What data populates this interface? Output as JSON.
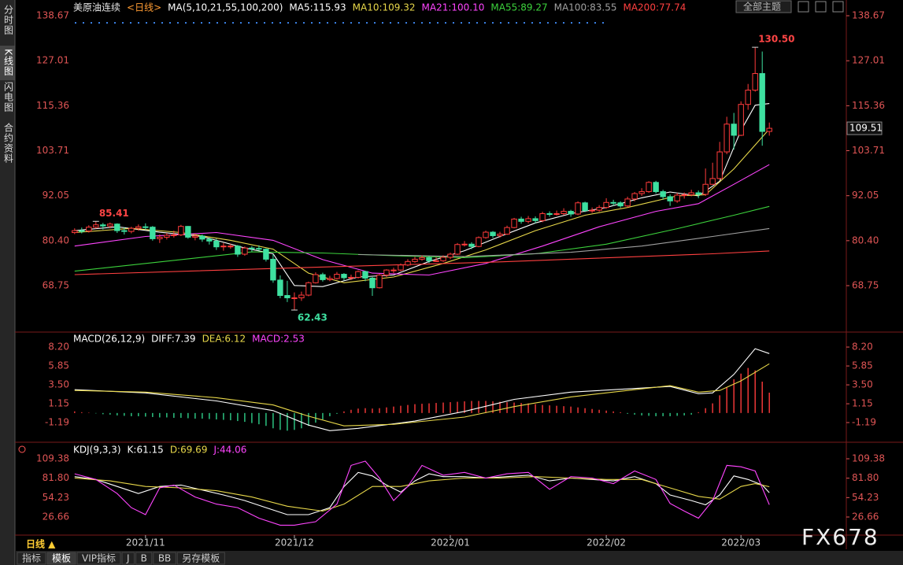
{
  "ui": {
    "sidebar": [
      "分时图",
      "K线图",
      "闪电图",
      "合约资料"
    ],
    "theme_button": "全部主题",
    "period_tab": "日线 ▲",
    "tabs": [
      "指标",
      "模板",
      "VIP指标",
      "J",
      "B",
      "BB",
      "另存模板"
    ],
    "watermark": "FX678"
  },
  "chart_data": [
    {
      "type": "candlestick",
      "title": "美原油连续",
      "period": "<日线>",
      "indicator": "MA(5,10,21,55,100,200)",
      "up_color": "#ff3b3b",
      "down_color": "#3ee0a0",
      "axis_color": "#e05555",
      "xlim": [
        -0.2,
        98.2
      ],
      "ylim": [
        57.13,
        140.71
      ],
      "yticks": [
        138.67,
        127.01,
        115.36,
        103.71,
        92.05,
        {
          "value": 80.4,
          "label": "80.40"
        },
        68.75
      ],
      "last_price_label": "109.51",
      "open": [
        82.5,
        83.0,
        82.9,
        83.9,
        84.5,
        84.2,
        84.7,
        83.0,
        82.8,
        83.6,
        84.0,
        83.9,
        80.9,
        81.3,
        81.8,
        81.9,
        84.1,
        81.3,
        81.6,
        80.8,
        80.3,
        78.8,
        79.0,
        79.0,
        76.9,
        78.5,
        78.4,
        78.2,
        75.6,
        70.2,
        66.2,
        65.6,
        65.6,
        66.3,
        69.5,
        71.6,
        70.3,
        70.6,
        71.7,
        70.8,
        70.9,
        72.4,
        70.7,
        68.2,
        71.5,
        72.8,
        72.8,
        74.1,
        75.0,
        75.6,
        76.0,
        75.2,
        75.2,
        76.1,
        76.9,
        79.4,
        79.5,
        78.9,
        81.2,
        82.6,
        81.7,
        82.1,
        83.8,
        86.0,
        85.4,
        86.1,
        85.6,
        87.4,
        87.2,
        87.4,
        88.0,
        87.3,
        90.2,
        88.2,
        88.3,
        89.0,
        90.3,
        90.2,
        89.4,
        91.2,
        92.6,
        93.1,
        95.5,
        93.1,
        91.8,
        90.7,
        92.2,
        92.3,
        92.8,
        92.4,
        95.0,
        96.5,
        103.4,
        110.6,
        107.7,
        115.7,
        119.4,
        123.7,
        108.7
      ],
      "high": [
        83.6,
        83.8,
        84.4,
        85.41,
        85.0,
        85.1,
        84.9,
        83.9,
        84.0,
        84.6,
        84.9,
        84.2,
        82.0,
        82.4,
        83.0,
        84.5,
        84.2,
        82.2,
        82.0,
        81.2,
        80.9,
        79.8,
        79.6,
        79.3,
        78.9,
        79.0,
        79.2,
        78.4,
        76.9,
        71.4,
        70.0,
        67.0,
        67.2,
        69.8,
        72.2,
        72.1,
        71.3,
        72.3,
        72.0,
        71.6,
        72.7,
        72.6,
        71.0,
        71.8,
        73.0,
        73.4,
        74.5,
        75.6,
        76.2,
        76.6,
        76.4,
        76.1,
        76.6,
        77.3,
        79.8,
        80.3,
        80.0,
        81.5,
        83.0,
        82.9,
        82.7,
        84.3,
        86.3,
        86.6,
        86.8,
        86.7,
        87.9,
        88.0,
        88.2,
        88.8,
        88.4,
        90.6,
        90.5,
        89.0,
        89.6,
        91.4,
        91.0,
        90.6,
        91.8,
        93.0,
        94.0,
        95.8,
        95.9,
        93.6,
        92.4,
        92.8,
        92.9,
        93.6,
        93.4,
        99.1,
        100.6,
        106.0,
        112.5,
        113.5,
        116.5,
        121.0,
        130.5,
        129.4,
        111.0
      ],
      "low": [
        82.1,
        82.3,
        82.5,
        83.5,
        83.3,
        83.6,
        82.4,
        82.0,
        82.3,
        83.0,
        83.2,
        80.4,
        79.8,
        80.7,
        81.2,
        81.6,
        80.9,
        80.5,
        80.1,
        79.4,
        78.0,
        77.8,
        78.3,
        76.2,
        76.5,
        77.6,
        77.8,
        75.0,
        69.5,
        65.5,
        64.5,
        62.43,
        64.8,
        66.0,
        69.3,
        69.8,
        69.9,
        70.3,
        70.1,
        70.2,
        70.6,
        69.9,
        66.1,
        68.0,
        71.0,
        72.0,
        72.5,
        73.8,
        74.7,
        75.2,
        74.6,
        74.9,
        74.9,
        75.6,
        76.7,
        78.9,
        78.2,
        78.7,
        80.9,
        81.1,
        81.2,
        81.9,
        83.6,
        84.8,
        84.9,
        84.9,
        85.2,
        86.6,
        86.9,
        87.0,
        86.6,
        87.0,
        87.8,
        87.6,
        87.9,
        88.7,
        89.4,
        88.9,
        89.0,
        90.6,
        92.0,
        92.8,
        92.6,
        91.0,
        89.4,
        90.2,
        91.3,
        91.9,
        91.4,
        92.0,
        94.9,
        96.3,
        102.8,
        104.0,
        107.5,
        114.3,
        119.0,
        105.0,
        107.6
      ],
      "close": [
        83.0,
        82.9,
        83.9,
        84.5,
        84.2,
        84.7,
        83.0,
        82.8,
        83.6,
        84.0,
        83.9,
        80.9,
        81.3,
        81.8,
        81.9,
        84.1,
        81.3,
        81.6,
        80.8,
        80.3,
        78.8,
        79.0,
        79.0,
        76.9,
        78.5,
        78.4,
        78.2,
        75.6,
        70.2,
        66.2,
        65.6,
        65.6,
        66.3,
        69.5,
        71.6,
        70.3,
        70.6,
        71.7,
        70.8,
        70.9,
        72.4,
        70.7,
        68.2,
        71.5,
        72.8,
        72.8,
        74.1,
        75.0,
        75.6,
        76.0,
        75.2,
        75.2,
        76.1,
        76.9,
        79.4,
        79.5,
        78.9,
        81.2,
        82.6,
        81.7,
        82.1,
        83.8,
        86.0,
        85.4,
        86.1,
        85.6,
        87.4,
        87.2,
        87.4,
        88.0,
        87.3,
        90.2,
        88.2,
        88.3,
        89.0,
        90.3,
        90.2,
        89.4,
        91.2,
        92.6,
        93.1,
        95.5,
        93.1,
        91.8,
        90.7,
        92.2,
        92.3,
        92.8,
        92.4,
        95.0,
        96.5,
        103.4,
        110.6,
        107.7,
        115.7,
        119.4,
        123.7,
        108.7,
        109.51
      ],
      "annotations": [
        {
          "text": "130.50",
          "value": 130.5,
          "color": "#ff4545"
        },
        {
          "text": "85.41",
          "value": 85.41,
          "color": "#ff4545"
        },
        {
          "text": "62.43",
          "value": 62.43,
          "color": "#3ee0a0"
        }
      ],
      "series": [
        {
          "name": "MA5:115.93",
          "color": "#ffffff",
          "x": [
            0,
            6,
            12,
            18,
            24,
            28,
            31,
            35,
            40,
            45,
            50,
            55,
            60,
            65,
            70,
            75,
            80,
            84,
            88,
            91,
            94,
            96,
            98
          ],
          "values": [
            83.0,
            84.0,
            82.6,
            81.5,
            78.5,
            77.0,
            68.8,
            68.5,
            71.0,
            71.5,
            75.0,
            77.8,
            81.5,
            85.0,
            87.4,
            89.0,
            91.5,
            93.0,
            92.0,
            95.8,
            109.0,
            115.5,
            115.93
          ]
        },
        {
          "name": "MA10:109.32",
          "color": "#e8d84a",
          "x": [
            0,
            8,
            15,
            22,
            28,
            33,
            38,
            45,
            52,
            58,
            65,
            72,
            78,
            85,
            89,
            93,
            98
          ],
          "values": [
            82.5,
            83.6,
            82.5,
            80.5,
            78.2,
            72.0,
            69.5,
            71.0,
            74.5,
            78.0,
            83.0,
            87.0,
            89.0,
            92.0,
            92.3,
            99.0,
            109.32
          ]
        },
        {
          "name": "MA21:100.10",
          "color": "#ff45ff",
          "x": [
            0,
            10,
            20,
            28,
            35,
            42,
            50,
            58,
            66,
            74,
            82,
            88,
            93,
            98
          ],
          "values": [
            79.0,
            81.5,
            82.5,
            80.5,
            75.5,
            72.0,
            71.5,
            74.5,
            79.0,
            84.0,
            88.0,
            90.0,
            95.0,
            100.1
          ]
        },
        {
          "name": "MA55:89.27",
          "color": "#3cd23c",
          "x": [
            0,
            15,
            25,
            35,
            45,
            55,
            65,
            75,
            85,
            93,
            98
          ],
          "values": [
            72.5,
            75.5,
            77.5,
            77.2,
            76.5,
            76.0,
            77.0,
            79.5,
            83.5,
            87.0,
            89.27
          ]
        },
        {
          "name": "MA100:83.55",
          "color": "#a0a0a0",
          "x": [
            40,
            55,
            70,
            80,
            90,
            98
          ],
          "values": [
            76.8,
            76.3,
            77.4,
            79.0,
            81.5,
            83.55
          ]
        },
        {
          "name": "MA200:77.74",
          "color": "#ff4040",
          "x": [
            0,
            30,
            60,
            90,
            98
          ],
          "values": [
            71.6,
            73.3,
            74.9,
            77.0,
            77.74
          ]
        }
      ]
    },
    {
      "type": "macd",
      "indicator": "MACD(26,12,9)",
      "axis_color": "#e05555",
      "xlim": [
        -0.2,
        98.2
      ],
      "ylim": [
        -3.44,
        9.77
      ],
      "yticks": [
        {
          "value": 8.2,
          "label": "8.20"
        },
        5.85,
        {
          "value": 3.5,
          "label": "3.50"
        },
        1.15,
        -1.19
      ],
      "series": [
        {
          "name": "DIFF:7.39",
          "color": "#ffffff",
          "x": [
            0,
            10,
            20,
            28,
            33,
            36,
            40,
            48,
            55,
            62,
            70,
            78,
            84,
            88,
            90,
            93,
            96,
            98
          ],
          "values": [
            2.9,
            2.5,
            1.5,
            0.3,
            -1.5,
            -2.2,
            -1.9,
            -1.0,
            0.2,
            1.7,
            2.6,
            3.0,
            3.3,
            2.4,
            2.5,
            4.8,
            8.0,
            7.39
          ]
        },
        {
          "name": "DEA:6.12",
          "color": "#e8d84a",
          "x": [
            0,
            10,
            20,
            28,
            33,
            38,
            45,
            55,
            62,
            70,
            78,
            84,
            88,
            91,
            94,
            98
          ],
          "values": [
            2.8,
            2.6,
            1.9,
            1.0,
            -0.4,
            -1.6,
            -1.4,
            -0.5,
            0.8,
            2.0,
            2.8,
            3.4,
            2.6,
            2.8,
            4.0,
            6.12
          ]
        }
      ],
      "histogram": {
        "name": "MACD:2.53",
        "color": "#ff45ff",
        "up_color": "#ff3b3b",
        "down_color": "#2fd08a",
        "values": [
          0.2,
          0.1,
          0.05,
          -0.05,
          -0.15,
          -0.2,
          -0.3,
          -0.35,
          -0.4,
          -0.4,
          -0.45,
          -0.5,
          -0.55,
          -0.55,
          -0.6,
          -0.6,
          -0.65,
          -0.7,
          -0.7,
          -0.75,
          -0.8,
          -0.85,
          -0.9,
          -1.0,
          -1.1,
          -1.25,
          -1.4,
          -1.6,
          -1.9,
          -2.1,
          -2.2,
          -2.1,
          -1.9,
          -1.6,
          -1.2,
          -0.8,
          -0.4,
          -0.1,
          0.2,
          0.4,
          0.55,
          0.6,
          0.55,
          0.6,
          0.7,
          0.8,
          0.9,
          1.0,
          1.1,
          1.15,
          1.2,
          1.25,
          1.3,
          1.35,
          1.4,
          1.45,
          1.5,
          1.5,
          1.5,
          1.45,
          1.4,
          1.35,
          1.3,
          1.25,
          1.2,
          1.1,
          1.0,
          0.95,
          0.9,
          0.85,
          0.8,
          0.7,
          0.6,
          0.5,
          0.4,
          0.3,
          0.2,
          0.1,
          -0.1,
          -0.2,
          -0.3,
          -0.35,
          -0.4,
          -0.4,
          -0.4,
          -0.35,
          -0.3,
          -0.2,
          0.1,
          0.6,
          1.2,
          2.2,
          3.2,
          4.2,
          4.9,
          5.6,
          5.3,
          3.9,
          2.53
        ]
      }
    },
    {
      "type": "kdj",
      "indicator": "KDJ(9,3,3)",
      "axis_color": "#e05555",
      "xlim": [
        -0.2,
        98.2
      ],
      "ylim": [
        0.95,
        129.5
      ],
      "yticks": [
        109.38,
        {
          "value": 81.8,
          "label": "81.80"
        },
        54.23,
        26.66
      ],
      "xticks": [
        {
          "value": 10,
          "label": "2021/11"
        },
        {
          "value": 31,
          "label": "2021/12"
        },
        {
          "value": 53,
          "label": "2022/01"
        },
        {
          "value": 75,
          "label": "2022/02"
        },
        {
          "value": 94,
          "label": "2022/03"
        }
      ],
      "series": [
        {
          "name": "K:61.15",
          "color": "#ffffff",
          "x": [
            0,
            3,
            6,
            9,
            12,
            15,
            18,
            21,
            24,
            27,
            30,
            33,
            36,
            38,
            40,
            42,
            44,
            46,
            48,
            50,
            52,
            55,
            58,
            61,
            64,
            67,
            70,
            73,
            76,
            79,
            82,
            84,
            87,
            89,
            91,
            93,
            95,
            97,
            98
          ],
          "values": [
            84,
            80,
            70,
            60,
            70,
            72,
            65,
            58,
            50,
            40,
            30,
            30,
            40,
            70,
            90,
            85,
            72,
            62,
            78,
            88,
            84,
            84,
            82,
            84,
            86,
            78,
            82,
            80,
            78,
            84,
            74,
            58,
            50,
            44,
            58,
            85,
            80,
            72,
            61.15
          ]
        },
        {
          "name": "D:69.69",
          "color": "#e8d84a",
          "x": [
            0,
            5,
            10,
            15,
            20,
            25,
            30,
            35,
            38,
            42,
            46,
            50,
            55,
            60,
            65,
            70,
            75,
            80,
            84,
            88,
            91,
            94,
            96,
            98
          ],
          "values": [
            82,
            78,
            70,
            68,
            64,
            55,
            42,
            35,
            45,
            70,
            70,
            78,
            82,
            82,
            84,
            82,
            80,
            80,
            68,
            56,
            52,
            70,
            74,
            69.69
          ]
        },
        {
          "name": "J:44.06",
          "color": "#ff45ff",
          "x": [
            0,
            3,
            6,
            8,
            10,
            12,
            14,
            17,
            20,
            23,
            26,
            29,
            31,
            34,
            37,
            39,
            41,
            43,
            45,
            47,
            49,
            52,
            55,
            58,
            61,
            64,
            67,
            70,
            73,
            76,
            79,
            82,
            84,
            86,
            88,
            90,
            92,
            94,
            96,
            98
          ],
          "values": [
            88,
            80,
            60,
            40,
            30,
            68,
            72,
            55,
            45,
            40,
            25,
            15,
            15,
            20,
            45,
            100,
            106,
            82,
            50,
            70,
            100,
            86,
            90,
            82,
            88,
            90,
            66,
            84,
            82,
            74,
            92,
            80,
            46,
            35,
            25,
            50,
            100,
            98,
            92,
            44.06
          ]
        }
      ]
    }
  ]
}
